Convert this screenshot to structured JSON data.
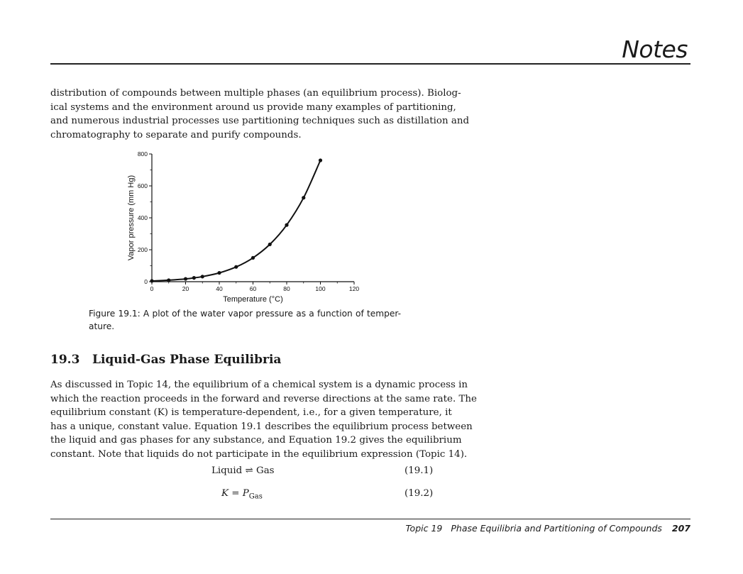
{
  "header": {
    "title": "Notes"
  },
  "intro": {
    "lines": [
      "distribution of compounds between multiple phases (an equilibrium process). Biolog-",
      "ical systems and the environment around us provide many examples of partitioning,",
      "and numerous industrial processes use partitioning techniques such as distillation and",
      "chromatography to separate and purify compounds."
    ]
  },
  "chart_data": {
    "type": "scatter",
    "xlabel": "Temperature (°C)",
    "ylabel": "Vapor pressure (mm Hg)",
    "xlim": [
      0,
      120
    ],
    "ylim": [
      0,
      800
    ],
    "xticks": [
      "0",
      "20",
      "40",
      "60",
      "80",
      "100",
      "120"
    ],
    "yticks": [
      "0",
      "200",
      "400",
      "600",
      "800"
    ],
    "x": [
      0,
      10,
      20,
      25,
      30,
      40,
      50,
      60,
      70,
      80,
      90,
      100
    ],
    "y": [
      4.6,
      9.2,
      17.5,
      23.8,
      31.8,
      55.3,
      92.5,
      149.4,
      233.7,
      355.1,
      525.8,
      760
    ],
    "grid": false,
    "fit_line": true
  },
  "caption": {
    "lines": [
      "Figure 19.1: A plot of the water vapor pressure as a function of temper-",
      "ature."
    ]
  },
  "section": {
    "number": "19.3",
    "title": "Liquid-Gas Phase Equilibria"
  },
  "body": {
    "lines": [
      "As discussed in Topic 14, the equilibrium of a chemical system is a dynamic process in",
      "which the reaction proceeds in the forward and reverse directions at the same rate. The",
      "equilibrium constant (K) is temperature-dependent, i.e., for a given temperature, it",
      "has a unique, constant value. Equation 19.1 describes the equilibrium process between",
      "the liquid and gas phases for any substance, and Equation 19.2 gives the equilibrium",
      "constant. Note that liquids do not participate in the equilibrium expression (Topic 14)."
    ]
  },
  "equations": [
    {
      "left": "Liquid",
      "arrow": "⇌",
      "right": "Gas",
      "number": "(19.1)"
    },
    {
      "lhs": "K",
      "eq": "=",
      "rhs": "P",
      "sub": "Gas",
      "number": "(19.2)"
    }
  ],
  "footer": {
    "topic": "Topic 19",
    "title": "Phase Equilibria and Partitioning of Compounds",
    "page": "207"
  }
}
